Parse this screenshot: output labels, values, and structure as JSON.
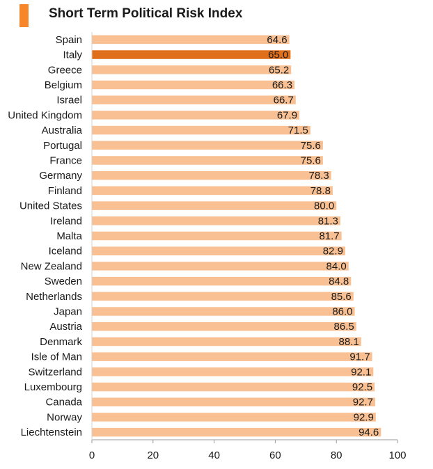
{
  "chart_data": {
    "type": "bar",
    "orientation": "horizontal",
    "title": "Short Term Political Risk Index",
    "categories": [
      "Spain",
      "Italy",
      "Greece",
      "Belgium",
      "Israel",
      "United Kingdom",
      "Australia",
      "Portugal",
      "France",
      "Germany",
      "Finland",
      "United States",
      "Ireland",
      "Malta",
      "Iceland",
      "New Zealand",
      "Sweden",
      "Netherlands",
      "Japan",
      "Austria",
      "Denmark",
      "Isle of Man",
      "Switzerland",
      "Luxembourg",
      "Canada",
      "Norway",
      "Liechtenstein"
    ],
    "values": [
      64.6,
      65.0,
      65.2,
      66.3,
      66.7,
      67.9,
      71.5,
      75.6,
      75.6,
      78.3,
      78.8,
      80.0,
      81.3,
      81.7,
      82.9,
      84.0,
      84.8,
      85.6,
      86.0,
      86.5,
      88.1,
      91.7,
      92.1,
      92.5,
      92.7,
      92.9,
      94.6
    ],
    "value_labels": [
      "64.6",
      "65.0",
      "65.2",
      "66.3",
      "66.7",
      "67.9",
      "71.5",
      "75.6",
      "75.6",
      "78.3",
      "78.8",
      "80.0",
      "81.3",
      "81.7",
      "82.9",
      "84.0",
      "84.8",
      "85.6",
      "86.0",
      "86.5",
      "88.1",
      "91.7",
      "92.1",
      "92.5",
      "92.7",
      "92.9",
      "94.6"
    ],
    "highlight": "Italy",
    "xlim": [
      0,
      100
    ],
    "xticks": [
      "0",
      "20",
      "40",
      "60",
      "80",
      "100"
    ],
    "xtick_values": [
      0,
      20,
      40,
      60,
      80,
      100
    ],
    "grid": false,
    "colors": {
      "bar": "#f9c193",
      "highlight": "#e06f1b",
      "accent": "#f7862b",
      "axis": "#9a9a9a"
    }
  }
}
